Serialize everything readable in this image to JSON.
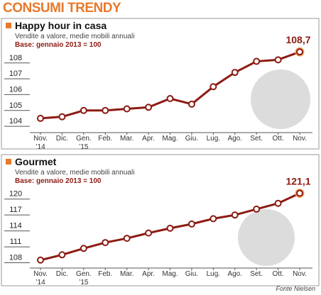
{
  "title": "CONSUMI TRENDY",
  "source": "Fonte Nielsen",
  "chart_data": [
    {
      "type": "line",
      "title": "Happy hour in casa",
      "subtitle": "Vendite a valore, medie mobili annuali",
      "note": "Base: gennaio 2013 = 100",
      "categories": [
        "Nov.\n’14",
        "Dic.",
        "Gen.\n’15",
        "Feb.",
        "Mar.",
        "Apr.",
        "Mag.",
        "Giu.",
        "Lug.",
        "Ago.",
        "Set.",
        "Ott.",
        "Nov."
      ],
      "values": [
        104.5,
        104.6,
        105.0,
        105.0,
        105.1,
        105.2,
        105.75,
        105.4,
        106.5,
        107.4,
        108.1,
        108.2,
        108.7
      ],
      "value_labels": [
        null,
        null,
        null,
        null,
        null,
        null,
        null,
        null,
        null,
        null,
        null,
        null,
        "108,7"
      ],
      "color": "#8c1b13",
      "ylim": [
        103.6,
        109.2
      ],
      "yticks": [
        104,
        105,
        106,
        107,
        108
      ]
    },
    {
      "type": "line",
      "title": "Gourmet",
      "subtitle": "Vendite a valore, medie mobili annuali",
      "note": "Base: gennaio 2013 = 100",
      "categories": [
        "Nov.\n’14",
        "Dic.",
        "Gen.\n’15",
        "Feb.",
        "Mar.",
        "Apr.",
        "Mag.",
        "Giu.",
        "Lug.",
        "Ago.",
        "Set.",
        "Ott.",
        "Nov."
      ],
      "values": [
        108.5,
        109.5,
        110.7,
        111.8,
        112.6,
        113.6,
        114.5,
        115.3,
        116.3,
        117.0,
        118.1,
        119.2,
        121.1
      ],
      "value_labels": [
        null,
        null,
        null,
        null,
        null,
        null,
        null,
        null,
        null,
        null,
        null,
        null,
        "121,1"
      ],
      "color": "#8c1b13",
      "ylim": [
        107,
        122.5
      ],
      "yticks": [
        108,
        111,
        114,
        117,
        120
      ]
    }
  ]
}
